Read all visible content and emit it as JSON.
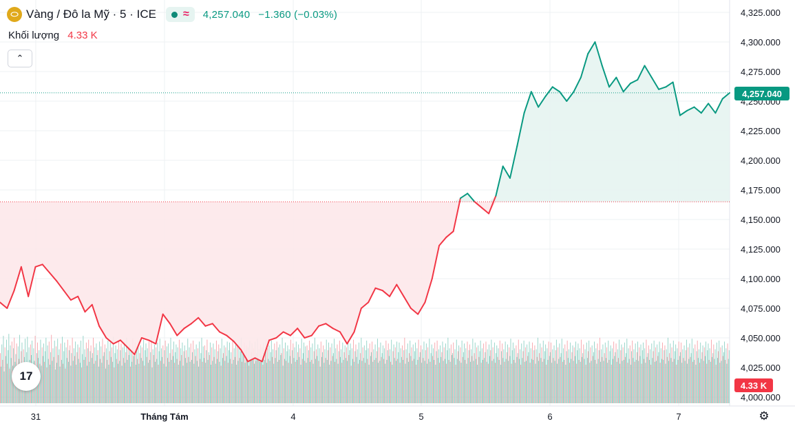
{
  "header": {
    "symbol_logo": "gold-coin-icon",
    "title": "Vàng / Đô la Mỹ · 5 · ICE",
    "price": "4,257.040",
    "change": "−1.360 (−0.03%)"
  },
  "volume": {
    "label": "Khối lượng",
    "value": "4.33 K"
  },
  "price_tag": "4,257.040",
  "volume_tag": "4.33 K",
  "colors": {
    "up": "#089981",
    "down": "#f23645",
    "up_fill": "#e6f4f1",
    "down_fill": "#fde8ea"
  },
  "chart_data": {
    "type": "area",
    "ylim": [
      3997,
      4328
    ],
    "y_ticks": [
      4000,
      4025,
      4050,
      4075,
      4100,
      4125,
      4150,
      4175,
      4200,
      4225,
      4250,
      4275,
      4300,
      4325
    ],
    "y_tick_labels": [
      "4,000.000",
      "4,025.000",
      "4,050.000",
      "4,075.000",
      "4,100.000",
      "4,125.000",
      "4,150.000",
      "4,175.000",
      "4,200.000",
      "4,225.000",
      "4,250.000",
      "4,275.000",
      "4,300.000",
      "4,325.000"
    ],
    "x_labels": [
      "31",
      "Tháng Tám",
      "4",
      "5",
      "6",
      "7"
    ],
    "baseline": 4165,
    "last_price": 4257.04,
    "series": [
      {
        "values": [
          4080,
          4075,
          4090,
          4110,
          4085,
          4110,
          4112,
          4105,
          4098,
          4090,
          4082,
          4085,
          4072,
          4078,
          4060,
          4050,
          4045,
          4048,
          4042,
          4036,
          4050,
          4048,
          4045,
          4070,
          4062,
          4052,
          4058,
          4062,
          4067,
          4060,
          4062,
          4055,
          4052,
          4047,
          4040,
          4030,
          4033,
          4030,
          4048,
          4050,
          4055,
          4052,
          4058,
          4050,
          4052,
          4060,
          4062,
          4058,
          4055,
          4045,
          4055,
          4075,
          4080,
          4092,
          4090,
          4085,
          4095,
          4085,
          4075,
          4070,
          4080,
          4100,
          4128,
          4135,
          4140,
          4168,
          4172,
          4165,
          4160,
          4155,
          4170,
          4195,
          4185,
          4212,
          4240,
          4258,
          4245,
          4254,
          4262,
          4258,
          4250,
          4258,
          4270,
          4290,
          4300,
          4280,
          4262,
          4270,
          4258,
          4265,
          4268,
          4280,
          4270,
          4260,
          4262,
          4266,
          4238,
          4242,
          4245,
          4240,
          4248,
          4240,
          4252,
          4257
        ]
      }
    ],
    "volume_bars": [
      52,
      38,
      61,
      45,
      70,
      33,
      58,
      49,
      66,
      41,
      55,
      72,
      36,
      60,
      47,
      64,
      39,
      57,
      68,
      43,
      51,
      62,
      35,
      59,
      46,
      71,
      40,
      54,
      63,
      37,
      56,
      48,
      67,
      42,
      53,
      69,
      34,
      58,
      45,
      61,
      50,
      65,
      38,
      57,
      44,
      70,
      36,
      52,
      63,
      47,
      55,
      41,
      66,
      39,
      58,
      49,
      62,
      43,
      54,
      68,
      37,
      60,
      46,
      64,
      40,
      53,
      71,
      44,
      57,
      48,
      65,
      35,
      59,
      42,
      67,
      50,
      56,
      38,
      62,
      45,
      69,
      41,
      54,
      63,
      36,
      58,
      47,
      66,
      43,
      55,
      60,
      39,
      52,
      68,
      44,
      57,
      49,
      64,
      40,
      53,
      61,
      46,
      58,
      42,
      65,
      37,
      51,
      70,
      45,
      56,
      48,
      63,
      39,
      57,
      66,
      43,
      54,
      60,
      47,
      52,
      68,
      41,
      58,
      44,
      62,
      50,
      55,
      38,
      64,
      46,
      59,
      42,
      67,
      49,
      53,
      61,
      36,
      57,
      45,
      65,
      40,
      54,
      63,
      48,
      58,
      43,
      69,
      37,
      52,
      60,
      46,
      56,
      41,
      66,
      44,
      55,
      62,
      39,
      58,
      47,
      64,
      42,
      53,
      68,
      45,
      57,
      50,
      61,
      38,
      56,
      43,
      67,
      49,
      54,
      63,
      40,
      59,
      46,
      65,
      41,
      52,
      60,
      47,
      58,
      44,
      66,
      39,
      55,
      62,
      48,
      57,
      42,
      64,
      45,
      53,
      69,
      37,
      56,
      50,
      61,
      43,
      58,
      46,
      63,
      40,
      54,
      67,
      44,
      57,
      48,
      60,
      41,
      55,
      65,
      38,
      59,
      47,
      62,
      43,
      52,
      68,
      45,
      56,
      49,
      64,
      42,
      53,
      61,
      46,
      58,
      40,
      66,
      44,
      57,
      50,
      63,
      39,
      54,
      60,
      47,
      55,
      42,
      67,
      48,
      58,
      43,
      62,
      45,
      53,
      65,
      41,
      56,
      49,
      61,
      44,
      57,
      38,
      64,
      46,
      52,
      68,
      43,
      59,
      47,
      60,
      42,
      55,
      66,
      45,
      53,
      50,
      63,
      40,
      58,
      44,
      62,
      48,
      56,
      41,
      65,
      46,
      54,
      61,
      43,
      57,
      39,
      67,
      47,
      52,
      60,
      44,
      58,
      49,
      64,
      42,
      55,
      63,
      46,
      53,
      41,
      66,
      45,
      57,
      48,
      62,
      40,
      59,
      44,
      61,
      47,
      54,
      68,
      43,
      56,
      50,
      63,
      42,
      55,
      60,
      45,
      58,
      39,
      65,
      46,
      53,
      62,
      48,
      57,
      41,
      64,
      44,
      52,
      67,
      47,
      56,
      43,
      61,
      49,
      58,
      40,
      63,
      45,
      54,
      66,
      42,
      57,
      46,
      60,
      44,
      53,
      65,
      48,
      56,
      41,
      62,
      47,
      55,
      64,
      43,
      58,
      45,
      61,
      50,
      52,
      68,
      39,
      57,
      46,
      63,
      44,
      54,
      60,
      42,
      56,
      49,
      66,
      41,
      55,
      62,
      47,
      58,
      43,
      64,
      45,
      53,
      61,
      48,
      57,
      40,
      67,
      46,
      52,
      63,
      44,
      59,
      42,
      60,
      47,
      55,
      65,
      43,
      58,
      45,
      62,
      41,
      54,
      68,
      46,
      56,
      49,
      61,
      44,
      57,
      38,
      64,
      48,
      53,
      60,
      42,
      56,
      47,
      66,
      45,
      55,
      63,
      40,
      58,
      44,
      62,
      49,
      52,
      67,
      43,
      57,
      46,
      61,
      41,
      54,
      65,
      48,
      56,
      42,
      63,
      45,
      53,
      60,
      47,
      58,
      44,
      64,
      50,
      55,
      62,
      39,
      57,
      46,
      66,
      43,
      54,
      61,
      48,
      56,
      41,
      63,
      45,
      52,
      68,
      44,
      58,
      47,
      60,
      42,
      55,
      65,
      46,
      57,
      40,
      62,
      49,
      53,
      64,
      43,
      56,
      45,
      61,
      47,
      54,
      67,
      42,
      58,
      44,
      63,
      48,
      52,
      60,
      46,
      57,
      41,
      65,
      45,
      55,
      62,
      49,
      56,
      43,
      66,
      40,
      54,
      61,
      47,
      58,
      44,
      64,
      46,
      53,
      63,
      42,
      57,
      48,
      60,
      45,
      55,
      68,
      41,
      56,
      47,
      62,
      43,
      52,
      65,
      49,
      58,
      44,
      61,
      46,
      54,
      63,
      40,
      57,
      45,
      66,
      48,
      53,
      60,
      42,
      56,
      47,
      64,
      44,
      55,
      62,
      41,
      58,
      46,
      67,
      43,
      52,
      61,
      49,
      57,
      45,
      63,
      40,
      54,
      65,
      47,
      56,
      42,
      60,
      48,
      53,
      64,
      44,
      58,
      46,
      62,
      41,
      55,
      68,
      45,
      57,
      43,
      61,
      50,
      52,
      63,
      47,
      56,
      40,
      66,
      46,
      54,
      60,
      44,
      58,
      42,
      65,
      48,
      53,
      62,
      45,
      57,
      41,
      64,
      47,
      55,
      61,
      43,
      56,
      49,
      67,
      44,
      52,
      63,
      46,
      58,
      40,
      60,
      48,
      54,
      65,
      42,
      57,
      45,
      62,
      47,
      53,
      64,
      43,
      56,
      41,
      61,
      49,
      55,
      66,
      44,
      58,
      46,
      63,
      42,
      52,
      60,
      48,
      57,
      45,
      65,
      40,
      54,
      62,
      47,
      56,
      43,
      64,
      46,
      53,
      61,
      44,
      58,
      49,
      67,
      41,
      55,
      63,
      45,
      57,
      42,
      60,
      48,
      52,
      66,
      46,
      56,
      40,
      62,
      47,
      54,
      65,
      43,
      58,
      44,
      61,
      49,
      53,
      64,
      42,
      57,
      46,
      63,
      45,
      55,
      60,
      41,
      56,
      48,
      68,
      44,
      52,
      62,
      47,
      58,
      43,
      65,
      46,
      54,
      61,
      40,
      57,
      45,
      64,
      49,
      53,
      63,
      42,
      56,
      47,
      60,
      44,
      55,
      66,
      41,
      58,
      46,
      62,
      48,
      52,
      67,
      43,
      57,
      45,
      61,
      40,
      54,
      65,
      47,
      56,
      42,
      63,
      46,
      53,
      60,
      44,
      58,
      49,
      64,
      41,
      55,
      62,
      45,
      57,
      43,
      66,
      48,
      52,
      61,
      46,
      56,
      40,
      63,
      47,
      54,
      65,
      42,
      58,
      44,
      60,
      49,
      53,
      64,
      45,
      57,
      41,
      62,
      46,
      55,
      68,
      43,
      56,
      48,
      61,
      44,
      52,
      63,
      47,
      58,
      42,
      65,
      45,
      54,
      60,
      40,
      57,
      46,
      64,
      49,
      53,
      62,
      43,
      56,
      47,
      66,
      41,
      55,
      61,
      44,
      58,
      45,
      63,
      48,
      52,
      67,
      42,
      57,
      46,
      60,
      40,
      54,
      65,
      47,
      56,
      43,
      62,
      45,
      53,
      64,
      44,
      58,
      49,
      61,
      41,
      55,
      63,
      46,
      57,
      42,
      66,
      48,
      52,
      60,
      45,
      56,
      40,
      62,
      47,
      54,
      65,
      43,
      58,
      44,
      61,
      49,
      53,
      64,
      42,
      57,
      46,
      63,
      45,
      55,
      60,
      41,
      56,
      48,
      68,
      44,
      52,
      62,
      47,
      58,
      43,
      65,
      46,
      54,
      61,
      40,
      57,
      45,
      64,
      49,
      53,
      63,
      42,
      56,
      47,
      60,
      44,
      55,
      66,
      41,
      58,
      46,
      62,
      48,
      52,
      67,
      43,
      57,
      45,
      61,
      40,
      54,
      65,
      47,
      56,
      42,
      63,
      46,
      53,
      60,
      44,
      58,
      49,
      64,
      41,
      55,
      62,
      45,
      57,
      43,
      66,
      48,
      52,
      61,
      46,
      56,
      40,
      63,
      47,
      54,
      65,
      42,
      58,
      44,
      60,
      49,
      53,
      64,
      45,
      57,
      41,
      62,
      46,
      55
    ]
  }
}
